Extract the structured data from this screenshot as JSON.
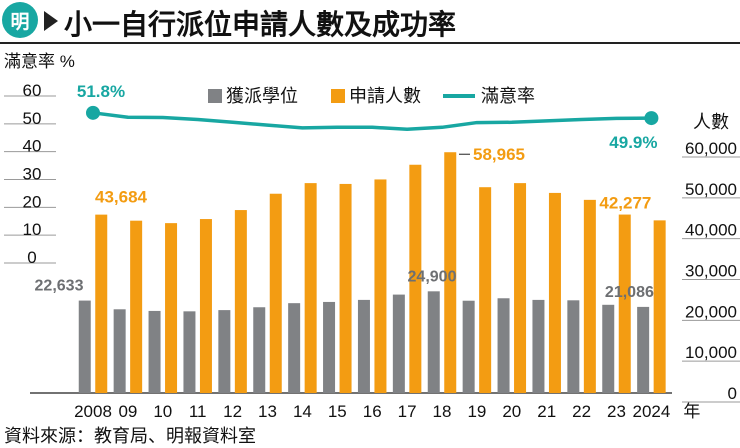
{
  "title": "小一自行派位申請人數及成功率",
  "logo_text": "明",
  "source": "資料來源：教育局、明報資料室",
  "chart_data": {
    "type": "bar",
    "categories": [
      "2008",
      "09",
      "10",
      "11",
      "12",
      "13",
      "14",
      "15",
      "16",
      "17",
      "18",
      "19",
      "20",
      "21",
      "22",
      "23",
      "2024"
    ],
    "x_unit": "年",
    "series": [
      {
        "name": "獲派學位",
        "color": "#808285",
        "axis": "right",
        "values": [
          22633,
          20500,
          20100,
          20000,
          20300,
          21000,
          22000,
          22300,
          22800,
          24100,
          24900,
          22600,
          23200,
          22800,
          22700,
          21600,
          21086
        ]
      },
      {
        "name": "申請人數",
        "color": "#f39c12",
        "axis": "right",
        "values": [
          43684,
          42200,
          41600,
          42600,
          44800,
          48800,
          51400,
          51200,
          52300,
          55900,
          58965,
          50400,
          51400,
          49000,
          47300,
          43700,
          42277
        ]
      },
      {
        "name": "滿意率",
        "color": "#18a7a2",
        "type": "line",
        "axis": "left",
        "values": [
          51.8,
          50.2,
          50.1,
          49.4,
          48.4,
          47.4,
          46.4,
          46.6,
          46.6,
          45.9,
          46.6,
          48.3,
          48.4,
          48.9,
          49.4,
          49.8,
          49.9
        ]
      }
    ],
    "left_axis": {
      "label": "滿意率",
      "unit": "%",
      "ylim": [
        0,
        60
      ],
      "ticks": [
        0,
        10,
        20,
        30,
        40,
        50,
        60
      ]
    },
    "right_axis": {
      "label": "人數",
      "ylim": [
        0,
        60000
      ],
      "ticks": [
        0,
        10000,
        20000,
        30000,
        40000,
        50000,
        60000
      ],
      "tick_labels": [
        "0",
        "10,000",
        "20,000",
        "30,000",
        "40,000",
        "50,000",
        "60,000"
      ]
    },
    "data_labels": [
      {
        "series": "獲派學位",
        "category": "2008",
        "text": "22,633"
      },
      {
        "series": "獲派學位",
        "category": "18",
        "text": "24,900"
      },
      {
        "series": "獲派學位",
        "category": "2024",
        "text": "21,086"
      },
      {
        "series": "申請人數",
        "category": "2008",
        "text": "43,684"
      },
      {
        "series": "申請人數",
        "category": "18",
        "text": "58,965"
      },
      {
        "series": "申請人數",
        "category": "2024",
        "text": "42,277"
      },
      {
        "series": "滿意率",
        "category": "2008",
        "text": "51.8%"
      },
      {
        "series": "滿意率",
        "category": "2024",
        "text": "49.9%"
      }
    ],
    "legend_position": "top",
    "grid": false
  }
}
